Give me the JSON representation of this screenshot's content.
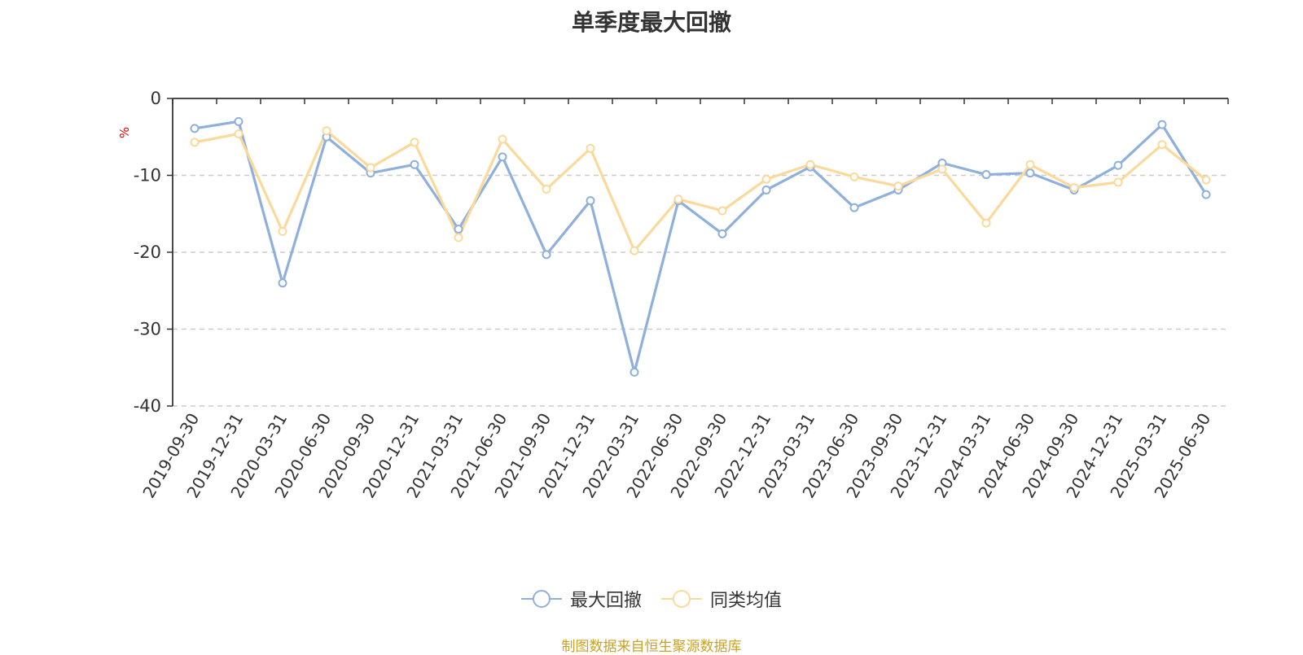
{
  "chart_data": {
    "type": "line",
    "title": "单季度最大回撤",
    "ylabel": "%",
    "ylim": [
      -40,
      0
    ],
    "yticks": [
      0,
      -10,
      -20,
      -30,
      -40
    ],
    "grid": true,
    "legend_position": "bottom-center",
    "categories": [
      "2019-09-30",
      "2019-12-31",
      "2020-03-31",
      "2020-06-30",
      "2020-09-30",
      "2020-12-31",
      "2021-03-31",
      "2021-06-30",
      "2021-09-30",
      "2021-12-31",
      "2022-03-31",
      "2022-06-30",
      "2022-09-30",
      "2022-12-31",
      "2023-03-31",
      "2023-06-30",
      "2023-09-30",
      "2023-12-31",
      "2024-03-31",
      "2024-06-30",
      "2024-09-30",
      "2024-12-31",
      "2025-03-31",
      "2025-06-30"
    ],
    "series": [
      {
        "name": "最大回撤",
        "color": "#8fb0dc",
        "values": [
          -3.9,
          -3.0,
          -24.0,
          -5.0,
          -9.7,
          -8.6,
          -17.0,
          -7.6,
          -20.3,
          -13.3,
          -35.6,
          -13.3,
          -17.6,
          -11.9,
          -8.9,
          -14.2,
          -11.9,
          -8.4,
          -9.9,
          -9.7,
          -11.9,
          -8.7,
          -3.4,
          -12.5
        ]
      },
      {
        "name": "同类均值",
        "color": "#fbd99a",
        "values": [
          -5.7,
          -4.6,
          -17.3,
          -4.2,
          -9.0,
          -5.7,
          -18.1,
          -5.3,
          -11.8,
          -6.5,
          -19.8,
          -13.1,
          -14.6,
          -10.5,
          -8.6,
          -10.2,
          -11.4,
          -9.2,
          -16.2,
          -8.6,
          -11.6,
          -10.9,
          -6.0,
          -10.6
        ]
      }
    ]
  },
  "source_text": "制图数据来自恒生聚源数据库"
}
